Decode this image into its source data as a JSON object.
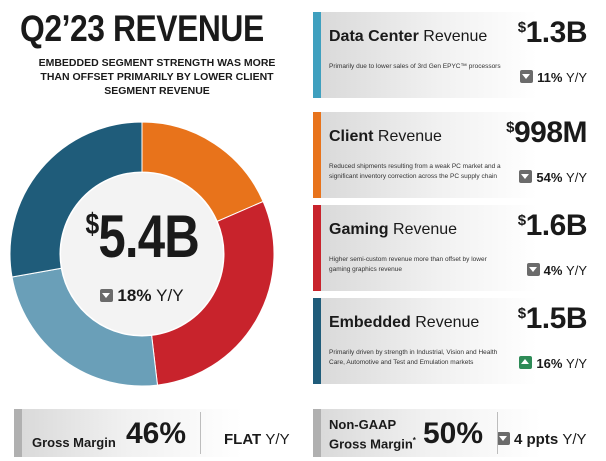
{
  "header": {
    "title": "Q2’23 REVENUE",
    "subtitle": "EMBEDDED SEGMENT STRENGTH WAS MORE THAN OFFSET PRIMARILY BY LOWER CLIENT SEGMENT REVENUE"
  },
  "total": {
    "currency": "$",
    "value": "5.4B",
    "change_pct": "18%",
    "change_unit": "Y/Y",
    "direction": "down"
  },
  "segments": [
    {
      "name_bold": "Data Center",
      "name_rest": " Revenue",
      "currency": "$",
      "amount": "1.3B",
      "description": "Primarily due to lower sales of 3rd Gen EPYC™ processors",
      "change_pct": "11%",
      "change_unit": "Y/Y",
      "direction": "down",
      "color": "#3fa0bf"
    },
    {
      "name_bold": "Client",
      "name_rest": " Revenue",
      "currency": "$",
      "amount": "998M",
      "description": "Reduced shipments resulting from a weak PC market and a significant inventory correction across the PC supply chain",
      "change_pct": "54%",
      "change_unit": "Y/Y",
      "direction": "down",
      "color": "#e8731b"
    },
    {
      "name_bold": "Gaming",
      "name_rest": " Revenue",
      "currency": "$",
      "amount": "1.6B",
      "description": "Higher semi-custom revenue more than offset by lower gaming graphics revenue",
      "change_pct": "4%",
      "change_unit": "Y/Y",
      "direction": "down",
      "color": "#c8232c"
    },
    {
      "name_bold": "Embedded",
      "name_rest": " Revenue",
      "currency": "$",
      "amount": "1.5B",
      "description": "Primarily driven by strength in Industrial, Vision and Health Care, Automotive and Test and Emulation markets",
      "change_pct": "16%",
      "change_unit": "Y/Y",
      "direction": "up",
      "color": "#1f5c7a"
    }
  ],
  "donut": {
    "order": [
      "Client",
      "Gaming",
      "Data Center",
      "Embedded"
    ],
    "values": [
      0.998,
      1.6,
      1.3,
      1.5
    ],
    "colors": [
      "#e8731b",
      "#c8232c",
      "#6a9fb8",
      "#1f5c7a"
    ]
  },
  "gross_margin": {
    "label": "Gross Margin",
    "value": "46%",
    "change": "FLAT",
    "change_unit": "Y/Y"
  },
  "non_gaap_margin": {
    "label_line1": "Non-GAAP",
    "label_line2": "Gross Margin",
    "marker": "*",
    "value": "50%",
    "change": "4 ppts",
    "change_unit": "Y/Y",
    "direction": "down"
  }
}
